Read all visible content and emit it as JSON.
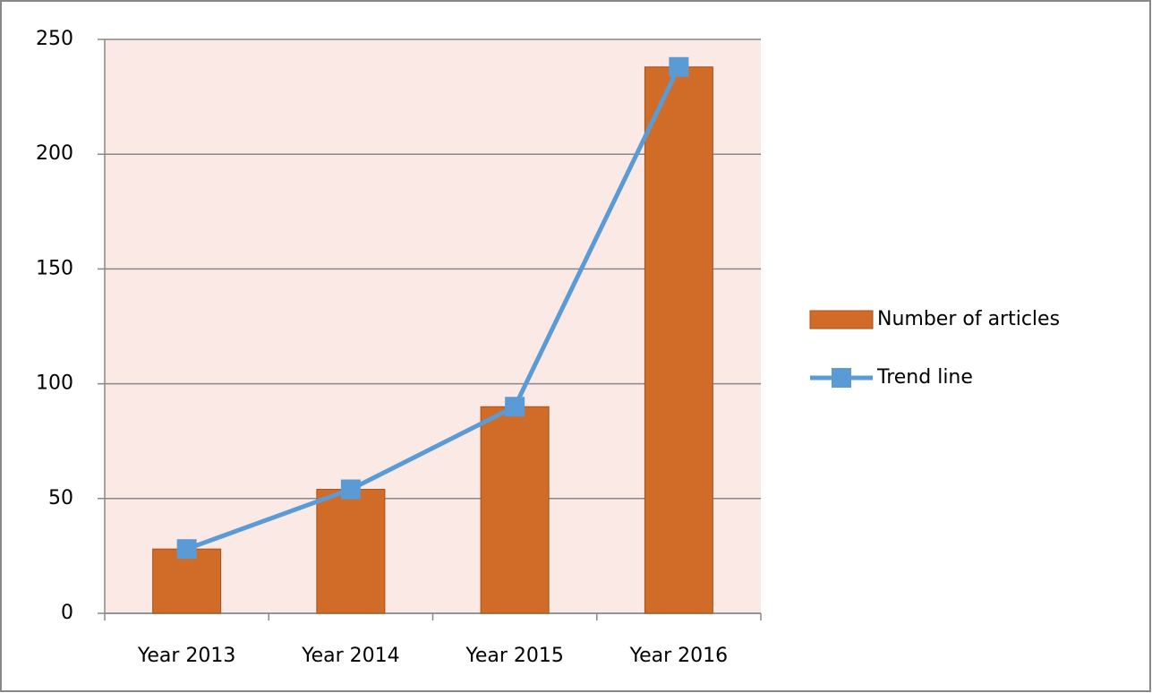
{
  "chart_data": {
    "type": "bar",
    "categories": [
      "Year 2013",
      "Year 2014",
      "Year 2015",
      "Year 2016"
    ],
    "series": [
      {
        "name": "Number of articles",
        "type": "bar",
        "color": "#d06b28",
        "values": [
          28,
          54,
          90,
          238
        ]
      },
      {
        "name": "Trend line",
        "type": "line",
        "color": "#5b9bd5",
        "values": [
          28,
          54,
          90,
          238
        ]
      }
    ],
    "ylim": [
      0,
      250
    ],
    "yticks": [
      0,
      50,
      100,
      150,
      200,
      250
    ],
    "grid": true,
    "legend": "right"
  }
}
